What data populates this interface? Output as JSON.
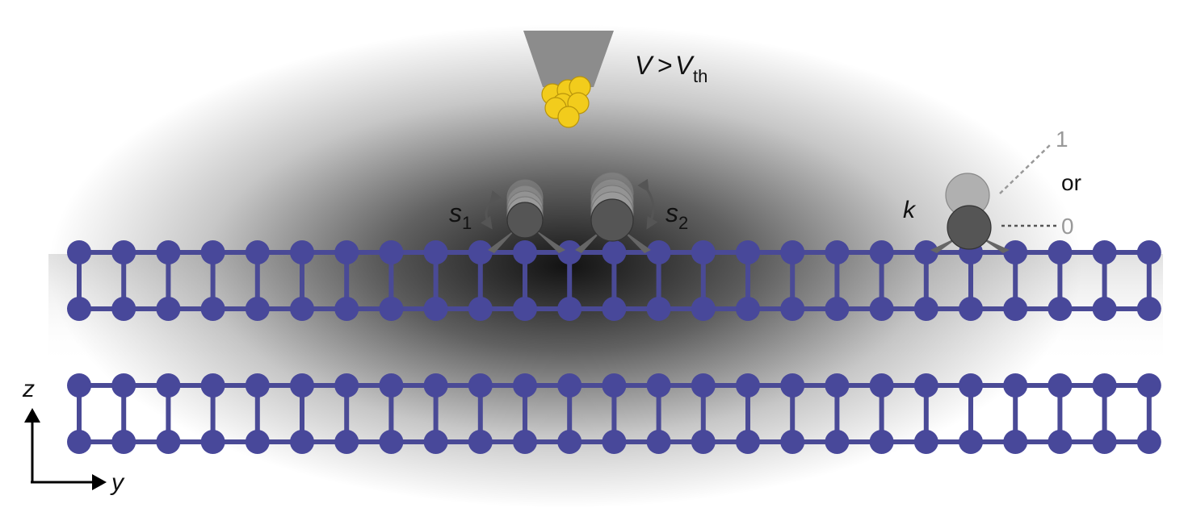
{
  "tip_label": {
    "V": "V",
    "gt": ">",
    "Vth": "V",
    "sub": "th"
  },
  "spins": [
    {
      "symbol": "s",
      "sub": "1"
    },
    {
      "symbol": "s",
      "sub": "2"
    }
  ],
  "readout": {
    "symbol": "k",
    "state_up": "1",
    "connector": "or",
    "state_down": "0"
  },
  "axes": {
    "vertical": "z",
    "horizontal": "y"
  },
  "colors": {
    "lattice": "#48489a",
    "lattice_bond": "#4a4a96",
    "tip": "#8c8c8c",
    "tip_apex_atoms": "#f2cc1c",
    "adatom": "#555555",
    "adatom_ghost": "#a0a0a0",
    "shadow": "#000000"
  }
}
